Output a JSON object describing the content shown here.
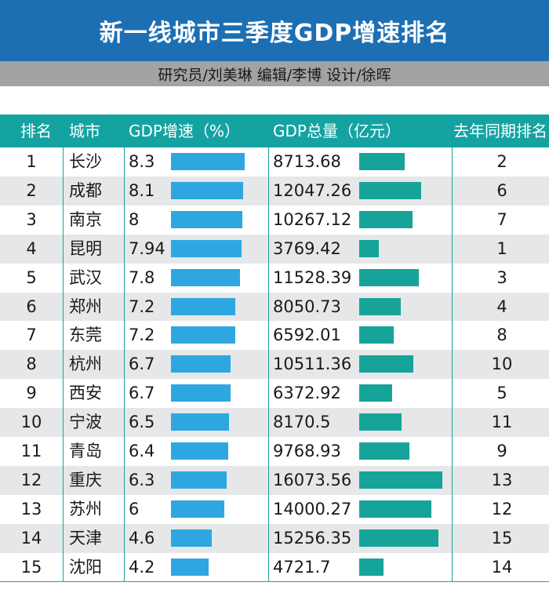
{
  "chart_data": {
    "type": "table",
    "title": "新一线城市三季度GDP增速排名",
    "subtitle": "研究员/刘美琳 编辑/李博  设计/徐晖",
    "columns": [
      "排名",
      "城市",
      "GDP增速（%）",
      "GDP总量（亿元）",
      "去年同期排名"
    ],
    "rows": [
      {
        "rank": "1",
        "city": "长沙",
        "growth": "8.3",
        "total": "8713.68",
        "prev": "2"
      },
      {
        "rank": "2",
        "city": "成都",
        "growth": "8.1",
        "total": "12047.26",
        "prev": "6"
      },
      {
        "rank": "3",
        "city": "南京",
        "growth": "8",
        "total": "10267.12",
        "prev": "7"
      },
      {
        "rank": "4",
        "city": "昆明",
        "growth": "7.94",
        "total": "3769.42",
        "prev": "1"
      },
      {
        "rank": "5",
        "city": "武汉",
        "growth": "7.8",
        "total": "11528.39",
        "prev": "3"
      },
      {
        "rank": "6",
        "city": "郑州",
        "growth": "7.2",
        "total": "8050.73",
        "prev": "4"
      },
      {
        "rank": "7",
        "city": "东莞",
        "growth": "7.2",
        "total": "6592.01",
        "prev": "8"
      },
      {
        "rank": "8",
        "city": "杭州",
        "growth": "6.7",
        "total": "10511.36",
        "prev": "10"
      },
      {
        "rank": "9",
        "city": "西安",
        "growth": "6.7",
        "total": "6372.92",
        "prev": "5"
      },
      {
        "rank": "10",
        "city": "宁波",
        "growth": "6.5",
        "total": "8170.5",
        "prev": "11"
      },
      {
        "rank": "11",
        "city": "青岛",
        "growth": "6.4",
        "total": "9768.93",
        "prev": "9"
      },
      {
        "rank": "12",
        "city": "重庆",
        "growth": "6.3",
        "total": "16073.56",
        "prev": "13"
      },
      {
        "rank": "13",
        "city": "苏州",
        "growth": "6",
        "total": "14000.27",
        "prev": "12"
      },
      {
        "rank": "14",
        "city": "天津",
        "growth": "4.6",
        "total": "15256.35",
        "prev": "15"
      },
      {
        "rank": "15",
        "city": "沈阳",
        "growth": "4.2",
        "total": "4721.7",
        "prev": "14"
      }
    ]
  },
  "colors": {
    "title_bg": "#1c6fb3",
    "credits_bg": "#a3a3a3",
    "header_bg": "#15a3a2",
    "growth_bar": "#2ea7e1",
    "total_bar": "#16a39a",
    "row_alt": "#e6e7e8"
  }
}
